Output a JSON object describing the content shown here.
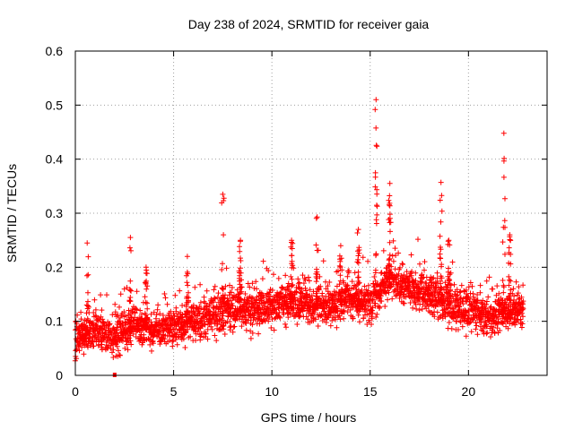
{
  "chart_data": {
    "type": "scatter",
    "title": "Day 238 of 2024, SRMTID for receiver gaia",
    "xlabel": "GPS time / hours",
    "ylabel": "SRMTID / TECUs",
    "xlim": [
      0,
      24
    ],
    "ylim": [
      0,
      0.6
    ],
    "x_ticks": [
      0,
      5,
      10,
      15,
      20
    ],
    "x_tick_labels": [
      "0",
      "5",
      "10",
      "15",
      "20"
    ],
    "y_ticks": [
      0,
      0.1,
      0.2,
      0.3,
      0.4,
      0.5,
      0.6
    ],
    "y_tick_labels": [
      "0",
      "0.1",
      "0.2",
      "0.3",
      "0.4",
      "0.5",
      "0.6"
    ],
    "grid": true,
    "marker": "+",
    "color": "#ff0000",
    "baseline": {
      "description": "approximate running level of the SRMTID cloud (hours, TECUs)",
      "x": [
        0,
        1,
        2,
        3,
        4,
        5,
        6,
        7,
        8,
        9,
        10,
        11,
        12,
        13,
        14,
        15,
        16,
        17,
        18,
        19,
        20,
        21,
        22,
        22.8
      ],
      "y": [
        0.07,
        0.08,
        0.07,
        0.09,
        0.08,
        0.09,
        0.1,
        0.11,
        0.12,
        0.12,
        0.13,
        0.14,
        0.13,
        0.13,
        0.14,
        0.13,
        0.18,
        0.16,
        0.15,
        0.13,
        0.12,
        0.11,
        0.12,
        0.12
      ]
    },
    "spikes": [
      {
        "x": 0.6,
        "y": 0.245
      },
      {
        "x": 2.8,
        "y": 0.255
      },
      {
        "x": 3.6,
        "y": 0.2
      },
      {
        "x": 5.7,
        "y": 0.22
      },
      {
        "x": 7.5,
        "y": 0.335
      },
      {
        "x": 8.4,
        "y": 0.25
      },
      {
        "x": 11.0,
        "y": 0.25
      },
      {
        "x": 12.3,
        "y": 0.293
      },
      {
        "x": 13.5,
        "y": 0.24
      },
      {
        "x": 14.4,
        "y": 0.27
      },
      {
        "x": 15.3,
        "y": 0.51
      },
      {
        "x": 16.0,
        "y": 0.355
      },
      {
        "x": 18.6,
        "y": 0.357
      },
      {
        "x": 19.0,
        "y": 0.25
      },
      {
        "x": 21.8,
        "y": 0.448
      },
      {
        "x": 22.1,
        "y": 0.26
      }
    ],
    "lowest_point": {
      "x": 2.0,
      "y": 0.0
    }
  }
}
